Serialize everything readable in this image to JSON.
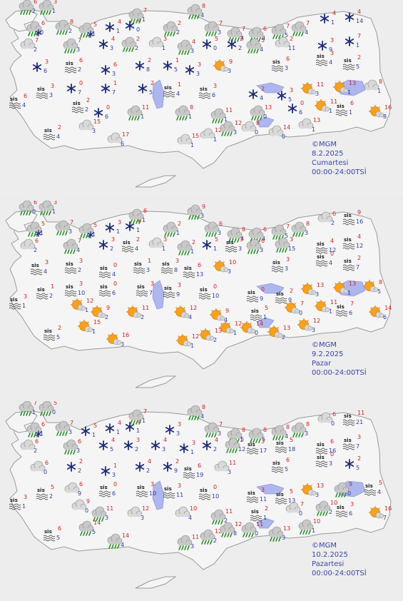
{
  "maps": [
    {
      "credit": "©MGM",
      "date": "8.2.2025",
      "day": "Cumartesi",
      "period": "00:00-24:00TSİ",
      "cells": [
        {
          "t": "rain",
          "hi": "6",
          "lo": "2"
        },
        {
          "t": "rain",
          "hi": "3",
          "lo": "1"
        },
        {
          "t": "rainsnow",
          "hi": "6",
          "lo": "0"
        },
        {
          "t": "rain",
          "hi": "8",
          "lo": "2"
        },
        {
          "t": "rainsnow",
          "hi": "5",
          "lo": "1"
        },
        {
          "t": "snow",
          "hi": "4",
          "lo": "1"
        },
        {
          "t": "snow",
          "hi": "4",
          "lo": "0"
        },
        {
          "t": "rain",
          "hi": "7",
          "lo": "1"
        },
        {
          "t": "rain",
          "hi": "2",
          "lo": "2"
        },
        {
          "t": "rain",
          "hi": "8",
          "lo": "4"
        },
        {
          "t": "rain",
          "hi": "7",
          "lo": "3"
        },
        {
          "t": "rain",
          "hi": "7",
          "lo": "4"
        },
        {
          "t": "rain",
          "hi": "6",
          "lo": "4"
        },
        {
          "t": "rain",
          "hi": "7",
          "lo": "5"
        },
        {
          "t": "rain",
          "hi": "7",
          "lo": "4"
        },
        {
          "t": "snow",
          "hi": "4",
          "lo": "1"
        },
        {
          "t": "snow",
          "hi": "4",
          "lo": "14"
        },
        {
          "t": "cloud",
          "hi": "7",
          "lo": "2"
        },
        {
          "t": "rain",
          "hi": "7",
          "lo": "3"
        },
        {
          "t": "snow",
          "hi": "4",
          "lo": "3"
        },
        {
          "t": "rain",
          "hi": "2",
          "lo": "2"
        },
        {
          "t": "cloud",
          "hi": "3",
          "lo": "1"
        },
        {
          "t": "rain",
          "hi": "4",
          "lo": "3"
        },
        {
          "t": "snow",
          "hi": "5",
          "lo": "0"
        },
        {
          "t": "snow",
          "hi": "2",
          "lo": "2"
        },
        {
          "t": "rain",
          "hi": "5",
          "lo": "4"
        },
        {
          "t": "cloud",
          "hi": "2",
          "lo": "11"
        },
        {
          "t": "snow",
          "hi": "3",
          "lo": "9"
        },
        {
          "t": "snow",
          "hi": "7",
          "lo": "1"
        },
        {
          "t": "snow",
          "hi": "3",
          "lo": "6"
        },
        {
          "t": "fog",
          "hi": "6",
          "lo": "2"
        },
        {
          "t": "snow",
          "hi": "6",
          "lo": "3"
        },
        {
          "t": "snow",
          "hi": "2",
          "lo": "8"
        },
        {
          "t": "snow",
          "hi": "1",
          "lo": "5"
        },
        {
          "t": "snow",
          "hi": "3",
          "lo": "3"
        },
        {
          "t": "sunny",
          "hi": "9",
          "lo": "3"
        },
        {
          "t": "fog",
          "hi": "6",
          "lo": "3"
        },
        {
          "t": "fog",
          "hi": "3",
          "lo": "4"
        },
        {
          "t": "fog",
          "hi": "2",
          "lo": "5"
        },
        {
          "t": "snow",
          "hi": "0",
          "lo": "7"
        },
        {
          "t": "snow",
          "hi": "1",
          "lo": "7"
        },
        {
          "t": "snow",
          "hi": "2",
          "lo": "5"
        },
        {
          "t": "fog",
          "hi": "1",
          "lo": "4"
        },
        {
          "t": "fog",
          "hi": "3",
          "lo": "6"
        },
        {
          "t": "snow",
          "hi": "2",
          "lo": "4"
        },
        {
          "t": "snow",
          "hi": "3",
          "lo": "5"
        },
        {
          "t": "sunny",
          "hi": "11",
          "lo": "3"
        },
        {
          "t": "sunny",
          "hi": "13",
          "lo": "1"
        },
        {
          "t": "cloud",
          "hi": "8",
          "lo": "1"
        },
        {
          "t": "fog",
          "hi": "6",
          "lo": "4"
        },
        {
          "t": "fog",
          "hi": "3",
          "lo": "3"
        },
        {
          "t": "fog",
          "hi": "2",
          "lo": "2"
        },
        {
          "t": "snow",
          "hi": "0",
          "lo": "6"
        },
        {
          "t": "rain",
          "hi": "11",
          "lo": "1"
        },
        {
          "t": "rain",
          "hi": "8",
          "lo": "1"
        },
        {
          "t": "rain",
          "hi": "11",
          "lo": "1"
        },
        {
          "t": "rain",
          "hi": "13",
          "lo": "0"
        },
        {
          "t": "snow",
          "hi": "0",
          "lo": "6"
        },
        {
          "t": "sunny",
          "hi": "11",
          "lo": "1"
        },
        {
          "t": "fog",
          "hi": "6",
          "lo": "1"
        },
        {
          "t": "sunny",
          "hi": "16",
          "lo": "8"
        },
        {
          "t": "fog",
          "hi": "2",
          "lo": "4"
        },
        {
          "t": "cloud",
          "hi": "15",
          "lo": "3"
        },
        {
          "t": "cloud",
          "hi": "17",
          "lo": "6"
        },
        {
          "t": "cloud",
          "hi": "15",
          "lo": "1"
        },
        {
          "t": "cloud",
          "hi": "12",
          "lo": "1"
        },
        {
          "t": "rain",
          "hi": "12",
          "lo": "3"
        },
        {
          "t": "cloud",
          "hi": "8",
          "lo": "0"
        },
        {
          "t": "cloud",
          "hi": "14",
          "lo": "0"
        },
        {
          "t": "cloud",
          "hi": "13",
          "lo": "1"
        }
      ]
    },
    {
      "credit": "©MGM",
      "date": "9.2.2025",
      "day": "Pazar",
      "period": "00:00-24:00TSİ",
      "cells": [
        {
          "t": "rain",
          "hi": "6",
          "lo": "0"
        },
        {
          "t": "rain",
          "hi": "3",
          "lo": "1"
        },
        {
          "t": "rainsnow",
          "hi": "5",
          "lo": "1"
        },
        {
          "t": "rain",
          "hi": "7",
          "lo": "3"
        },
        {
          "t": "rainsnow",
          "hi": "5",
          "lo": "1"
        },
        {
          "t": "snow",
          "hi": "3",
          "lo": "1"
        },
        {
          "t": "snow",
          "hi": "6",
          "lo": "1"
        },
        {
          "t": "rain",
          "hi": "6",
          "lo": "1"
        },
        {
          "t": "rain",
          "hi": "2",
          "lo": "1"
        },
        {
          "t": "rain",
          "hi": "9",
          "lo": "3"
        },
        {
          "t": "rain",
          "hi": "6",
          "lo": "3"
        },
        {
          "t": "rain",
          "hi": "8",
          "lo": "4"
        },
        {
          "t": "rain",
          "hi": "6",
          "lo": "4"
        },
        {
          "t": "rain",
          "hi": "7",
          "lo": "5"
        },
        {
          "t": "rain",
          "hi": "8",
          "lo": "3"
        },
        {
          "t": "cloud",
          "hi": "6",
          "lo": "2"
        },
        {
          "t": "fog",
          "hi": "9",
          "lo": "16"
        },
        {
          "t": "cloud",
          "hi": "6",
          "lo": "2"
        },
        {
          "t": "rain",
          "hi": "7",
          "lo": "4"
        },
        {
          "t": "snow",
          "hi": "3",
          "lo": "2"
        },
        {
          "t": "fog",
          "hi": "2",
          "lo": "4"
        },
        {
          "t": "cloud",
          "hi": "3",
          "lo": "1"
        },
        {
          "t": "rain",
          "hi": "2",
          "lo": "1"
        },
        {
          "t": "snow",
          "hi": "5",
          "lo": "1"
        },
        {
          "t": "fog",
          "hi": "3",
          "lo": "3"
        },
        {
          "t": "rain",
          "hi": "6",
          "lo": "3"
        },
        {
          "t": "rain",
          "hi": "3",
          "lo": "15"
        },
        {
          "t": "fog",
          "hi": "4",
          "lo": "12"
        },
        {
          "t": "fog",
          "hi": "4",
          "lo": "12"
        },
        {
          "t": "fog",
          "hi": "3",
          "lo": "4"
        },
        {
          "t": "fog",
          "hi": "3",
          "lo": "2"
        },
        {
          "t": "fog",
          "hi": "0",
          "lo": "4"
        },
        {
          "t": "fog",
          "hi": "1",
          "lo": "3"
        },
        {
          "t": "fog",
          "hi": "3",
          "lo": "8"
        },
        {
          "t": "fog",
          "hi": "6",
          "lo": "13"
        },
        {
          "t": "sunny",
          "hi": "10",
          "lo": "3"
        },
        {
          "t": "fog",
          "hi": "3",
          "lo": "3"
        },
        {
          "t": "fog",
          "hi": "0",
          "lo": "4"
        },
        {
          "t": "fog",
          "hi": "2",
          "lo": "7"
        },
        {
          "t": "fog",
          "hi": "3",
          "lo": "10"
        },
        {
          "t": "fog",
          "hi": "0",
          "lo": "6"
        },
        {
          "t": "fog",
          "hi": "3",
          "lo": "7"
        },
        {
          "t": "fog",
          "hi": "3",
          "lo": "9"
        },
        {
          "t": "fog",
          "hi": "0",
          "lo": "10"
        },
        {
          "t": "fog",
          "hi": "0",
          "lo": "9"
        },
        {
          "t": "fog",
          "hi": "2",
          "lo": "9"
        },
        {
          "t": "sunny",
          "hi": "13",
          "lo": "3"
        },
        {
          "t": "sunny",
          "hi": "13",
          "lo": "1"
        },
        {
          "t": "sunny",
          "hi": "8",
          "lo": "5"
        },
        {
          "t": "fog",
          "hi": "3",
          "lo": "1"
        },
        {
          "t": "fog",
          "hi": "1",
          "lo": "2"
        },
        {
          "t": "sunny",
          "hi": "12",
          "lo": "1"
        },
        {
          "t": "sunny",
          "hi": "9",
          "lo": "2"
        },
        {
          "t": "sunny",
          "hi": "11",
          "lo": "2"
        },
        {
          "t": "sunny",
          "hi": "12",
          "lo": "4"
        },
        {
          "t": "sunny",
          "hi": "9",
          "lo": "4"
        },
        {
          "t": "fog",
          "hi": "5",
          "lo": "1"
        },
        {
          "t": "sunny",
          "hi": "7",
          "lo": "0"
        },
        {
          "t": "sunny",
          "hi": "11",
          "lo": "1"
        },
        {
          "t": "fog",
          "hi": "7",
          "lo": "6"
        },
        {
          "t": "sunny",
          "hi": "14",
          "lo": "6"
        },
        {
          "t": "fog",
          "hi": "2",
          "lo": "5"
        },
        {
          "t": "sunny",
          "hi": "15",
          "lo": "1"
        },
        {
          "t": "sunny",
          "hi": "16",
          "lo": "3"
        },
        {
          "t": "sunny",
          "hi": "12",
          "lo": "1"
        },
        {
          "t": "sunny",
          "hi": "13",
          "lo": "2"
        },
        {
          "t": "sunny",
          "hi": "12",
          "lo": "1"
        },
        {
          "t": "sunny",
          "hi": "14",
          "lo": "0"
        },
        {
          "t": "sunny",
          "hi": "13",
          "lo": "2"
        },
        {
          "t": "sunny",
          "hi": "12",
          "lo": "3"
        }
      ]
    },
    {
      "credit": "©MGM",
      "date": "10.2.2025",
      "day": "Pazartesi",
      "period": "00:00-24:00TSİ",
      "cells": [
        {
          "t": "rain",
          "hi": "7",
          "lo": "1"
        },
        {
          "t": "rain",
          "hi": "5",
          "lo": "0"
        },
        {
          "t": "rainsnow",
          "hi": "6",
          "lo": "1"
        },
        {
          "t": "rain",
          "hi": "7",
          "lo": "3"
        },
        {
          "t": "snow",
          "hi": "5",
          "lo": "1"
        },
        {
          "t": "snow",
          "hi": "4",
          "lo": "1"
        },
        {
          "t": "snow",
          "hi": "4",
          "lo": "1"
        },
        {
          "t": "rain",
          "hi": "7",
          "lo": "1"
        },
        {
          "t": "snow",
          "hi": "3",
          "lo": "3"
        },
        {
          "t": "rain",
          "hi": "8",
          "lo": "4"
        },
        {
          "t": "rain",
          "hi": "7",
          "lo": "3"
        },
        {
          "t": "rain",
          "hi": "8",
          "lo": "5"
        },
        {
          "t": "rain",
          "hi": "8",
          "lo": "5"
        },
        {
          "t": "rain",
          "hi": "8",
          "lo": "4"
        },
        {
          "t": "rain",
          "hi": "8",
          "lo": "3"
        },
        {
          "t": "cloud",
          "hi": "6",
          "lo": "0"
        },
        {
          "t": "fog",
          "hi": "11",
          "lo": "21"
        },
        {
          "t": "cloud",
          "hi": "6",
          "lo": "2"
        },
        {
          "t": "rain",
          "hi": "6",
          "lo": "3"
        },
        {
          "t": "snow",
          "hi": "4",
          "lo": "5"
        },
        {
          "t": "snow",
          "hi": "3",
          "lo": "2"
        },
        {
          "t": "snow",
          "hi": "4",
          "lo": "3"
        },
        {
          "t": "snow",
          "hi": "3",
          "lo": "1"
        },
        {
          "t": "snow",
          "hi": "4",
          "lo": "2"
        },
        {
          "t": "rain",
          "hi": "1",
          "lo": "12"
        },
        {
          "t": "fog",
          "hi": "3",
          "lo": "17"
        },
        {
          "t": "fog",
          "hi": "5",
          "lo": "18"
        },
        {
          "t": "fog",
          "hi": "6",
          "lo": "16"
        },
        {
          "t": "fog",
          "hi": "3",
          "lo": "7"
        },
        {
          "t": "cloud",
          "hi": "6",
          "lo": "0"
        },
        {
          "t": "snow",
          "hi": "2",
          "lo": "2"
        },
        {
          "t": "snow",
          "hi": "1",
          "lo": "3"
        },
        {
          "t": "snow",
          "hi": "4",
          "lo": "2"
        },
        {
          "t": "snow",
          "hi": "2",
          "lo": "9"
        },
        {
          "t": "fog",
          "hi": "6",
          "lo": "19"
        },
        {
          "t": "cloud",
          "hi": "11",
          "lo": "3"
        },
        {
          "t": "fog",
          "hi": "6",
          "lo": "5"
        },
        {
          "t": "fog",
          "hi": "0",
          "lo": "3"
        },
        {
          "t": "snow",
          "hi": "2",
          "lo": "5"
        },
        {
          "t": "cloud",
          "hi": "6",
          "lo": "9"
        },
        {
          "t": "fog",
          "hi": "0",
          "lo": "6"
        },
        {
          "t": "fog",
          "hi": "3",
          "lo": "10"
        },
        {
          "t": "fog",
          "hi": "3",
          "lo": "11"
        },
        {
          "t": "fog",
          "hi": "0",
          "lo": "10"
        },
        {
          "t": "fog",
          "hi": "3",
          "lo": "11"
        },
        {
          "t": "fog",
          "hi": "5",
          "lo": "13"
        },
        {
          "t": "sunny",
          "hi": "13",
          "lo": "3"
        },
        {
          "t": "rain",
          "hi": "9",
          "lo": "0"
        },
        {
          "t": "fog",
          "hi": "5",
          "lo": "4"
        },
        {
          "t": "fog",
          "hi": "3",
          "lo": "1"
        },
        {
          "t": "fog",
          "hi": "5",
          "lo": "2"
        },
        {
          "t": "cloud",
          "hi": "9",
          "lo": "0"
        },
        {
          "t": "rain",
          "hi": "11",
          "lo": "3"
        },
        {
          "t": "cloud",
          "hi": "12",
          "lo": "3"
        },
        {
          "t": "cloud",
          "hi": "10",
          "lo": "4"
        },
        {
          "t": "rain",
          "hi": "11",
          "lo": "2"
        },
        {
          "t": "fog",
          "hi": "2",
          "lo": "1"
        },
        {
          "t": "cloud",
          "hi": "7",
          "lo": "0"
        },
        {
          "t": "rain",
          "hi": "10",
          "lo": "2"
        },
        {
          "t": "fog",
          "hi": "3",
          "lo": "6"
        },
        {
          "t": "sunny",
          "hi": "16",
          "lo": "7"
        },
        {
          "t": "fog",
          "hi": "6",
          "lo": "5"
        },
        {
          "t": "rain",
          "hi": "14",
          "lo": "5"
        },
        {
          "t": "rain",
          "hi": "14",
          "lo": "4"
        },
        {
          "t": "rain",
          "hi": "11",
          "lo": "3"
        },
        {
          "t": "rain",
          "hi": "12",
          "lo": "2"
        },
        {
          "t": "rain",
          "hi": "12",
          "lo": "8"
        },
        {
          "t": "rain",
          "hi": "11",
          "lo": "0"
        },
        {
          "t": "rain",
          "hi": "13",
          "lo": "3"
        },
        {
          "t": "rain",
          "hi": "10",
          "lo": "1"
        }
      ]
    }
  ]
}
